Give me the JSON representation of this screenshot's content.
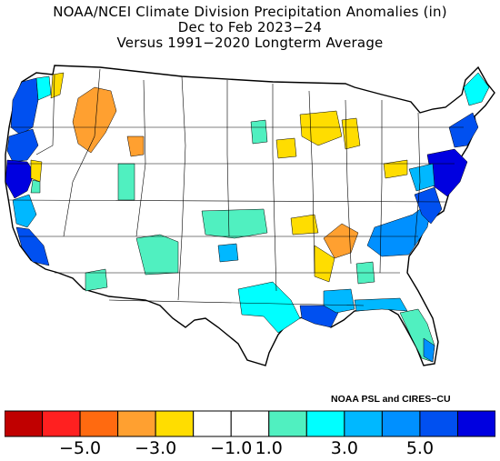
{
  "title": {
    "line1": "NOAA/NCEI Climate Division Precipitation Anomalies (in)",
    "line2": "Dec to Feb 2023−24",
    "line3": "Versus 1991−2020 Longterm Average"
  },
  "credit": "NOAA PSL and CIRES−CU",
  "legend": {
    "colors": [
      "#c00000",
      "#ff2020",
      "#ff6a10",
      "#ffa030",
      "#ffdd00",
      "#ffffff",
      "#ffffff",
      "#50f0c0",
      "#00ffff",
      "#00b8ff",
      "#0090ff",
      "#0050f0",
      "#0000e0"
    ],
    "tick_labels": [
      "−5.0",
      "−3.0",
      "−1.0",
      "1.0",
      "3.0",
      "5.0"
    ]
  },
  "map_regions": [
    {
      "name": "pacific-northwest-coast",
      "color": "#0050f0"
    },
    {
      "name": "oregon-coast",
      "color": "#0050f0"
    },
    {
      "name": "northern-california-coast",
      "color": "#0000e0"
    },
    {
      "name": "southern-california-coast",
      "color": "#0050f0"
    },
    {
      "name": "central-california",
      "color": "#00b8ff"
    },
    {
      "name": "idaho-montana-dry",
      "color": "#ffa030"
    },
    {
      "name": "great-lakes-dry",
      "color": "#ffdd00"
    },
    {
      "name": "kentucky-tennessee-dry",
      "color": "#ffa030"
    },
    {
      "name": "gulf-coast-wet",
      "color": "#0050f0"
    },
    {
      "name": "mid-atlantic-wet",
      "color": "#0000e0"
    },
    {
      "name": "southeast-wet",
      "color": "#0090ff"
    },
    {
      "name": "florida",
      "color": "#50f0c0"
    },
    {
      "name": "texas",
      "color": "#00ffff"
    },
    {
      "name": "kansas-oklahoma",
      "color": "#50f0c0"
    }
  ]
}
